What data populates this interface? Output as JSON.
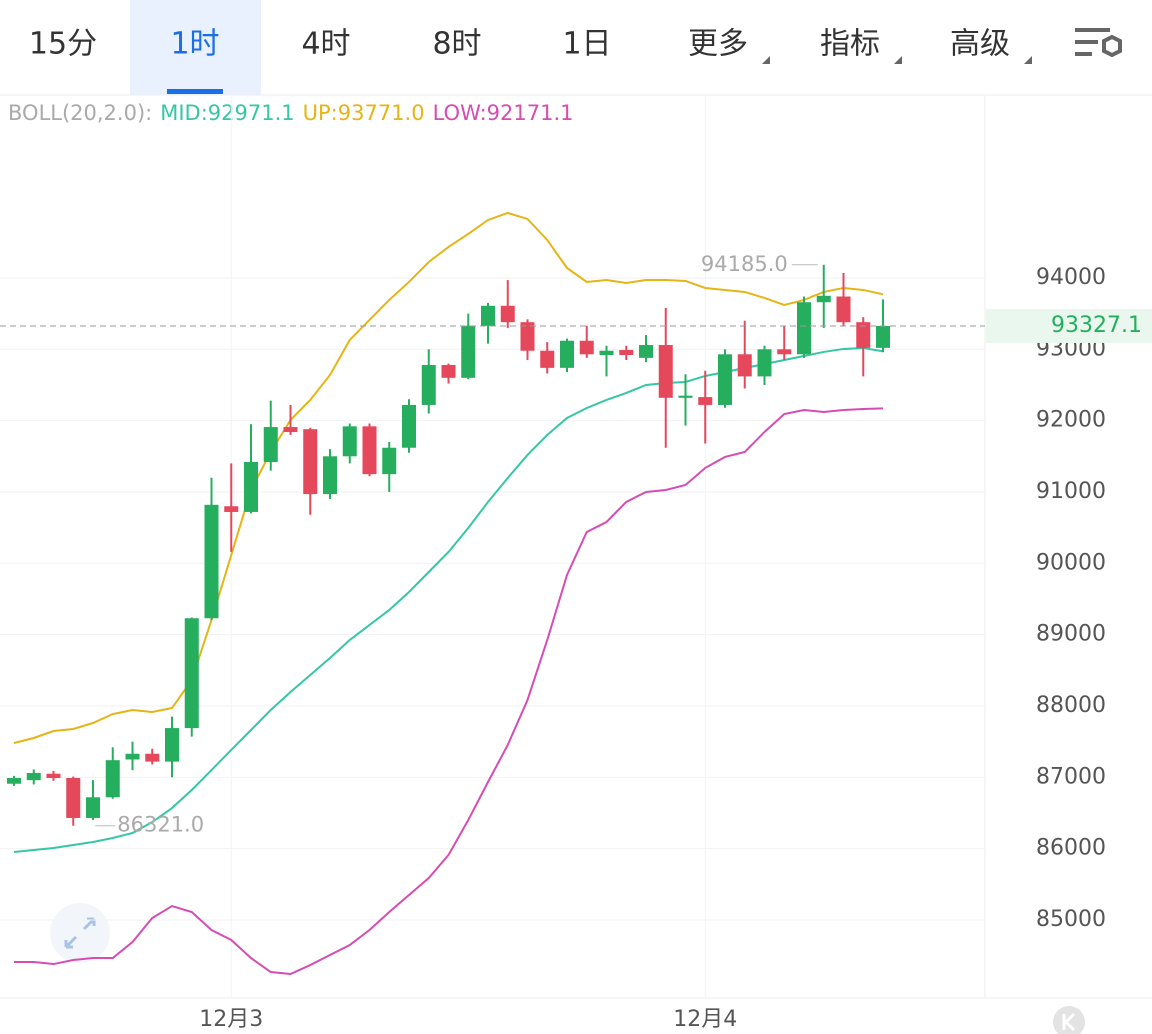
{
  "tabs": {
    "items": [
      "15分",
      "1时",
      "4时",
      "8时",
      "1日",
      "更多",
      "指标",
      "高级"
    ],
    "active": 1
  },
  "chart_data": {
    "type": "candlestick",
    "indicator_label": "BOLL(20,2.0):",
    "categories": [
      null,
      null,
      null,
      null,
      null,
      null,
      null,
      null,
      null,
      null,
      null,
      "12月3",
      null,
      null,
      null,
      null,
      null,
      null,
      null,
      null,
      null,
      null,
      null,
      null,
      null,
      null,
      null,
      null,
      null,
      null,
      null,
      null,
      null,
      null,
      null,
      "12月4",
      null,
      null,
      null,
      null,
      null,
      null,
      null,
      null,
      null
    ],
    "open": [
      86910,
      86960,
      87050,
      86990,
      86430,
      86720,
      87250,
      87330,
      87220,
      87690,
      89230,
      90800,
      90720,
      91420,
      91910,
      91880,
      90970,
      91500,
      91920,
      91250,
      91620,
      92220,
      92780,
      92600,
      93330,
      93610,
      93380,
      92980,
      92740,
      93120,
      92920,
      92990,
      92880,
      93060,
      92320,
      92330,
      92220,
      92930,
      92620,
      93000,
      92930,
      93660,
      93740,
      93380,
      93020
    ],
    "high": [
      87020,
      87110,
      87090,
      87010,
      86960,
      87420,
      87500,
      87400,
      87850,
      89240,
      91200,
      91400,
      91950,
      92280,
      92220,
      91900,
      91600,
      91960,
      91960,
      91700,
      92300,
      93000,
      92800,
      93500,
      93650,
      93970,
      93420,
      93100,
      93150,
      93330,
      93050,
      93050,
      93200,
      93580,
      92650,
      92700,
      93000,
      93400,
      93050,
      93320,
      93740,
      94185,
      94070,
      93450,
      93700
    ],
    "low": [
      86880,
      86900,
      86950,
      86321,
      86400,
      86700,
      87100,
      87180,
      87000,
      87570,
      89200,
      90160,
      90700,
      91300,
      91800,
      90680,
      90900,
      91400,
      91220,
      91000,
      91550,
      92100,
      92520,
      92580,
      93080,
      93300,
      92850,
      92660,
      92680,
      92880,
      92620,
      92850,
      92820,
      91620,
      91930,
      91680,
      92180,
      92450,
      92500,
      92850,
      92880,
      93300,
      93330,
      92620,
      92960
    ],
    "close": [
      86990,
      87060,
      86990,
      86430,
      86720,
      87240,
      87330,
      87220,
      87690,
      89230,
      90820,
      90720,
      91420,
      91910,
      91840,
      90970,
      91500,
      91920,
      91250,
      91620,
      92220,
      92780,
      92600,
      93330,
      93610,
      93380,
      92980,
      92740,
      93120,
      92930,
      92980,
      92920,
      93060,
      92320,
      92350,
      92220,
      92930,
      92620,
      93000,
      92930,
      93660,
      93750,
      93380,
      93020,
      93327.1
    ],
    "up_color": "#26ae5f",
    "down_color": "#e5475b",
    "series": [
      {
        "name": "MID:92971.1",
        "color": "#35c7a5",
        "values": [
          85953,
          85981,
          86009,
          86051,
          86093,
          86149,
          86219,
          86373,
          86569,
          86822,
          87102,
          87383,
          87663,
          87944,
          88196,
          88434,
          88673,
          88925,
          89136,
          89346,
          89598,
          89878,
          90159,
          90495,
          90860,
          91196,
          91519,
          91799,
          92037,
          92177,
          92290,
          92388,
          92500,
          92528,
          92542,
          92626,
          92682,
          92738,
          92794,
          92850,
          92906,
          92963,
          93005,
          93019,
          92971.1
        ]
      },
      {
        "name": "UP:93771.0",
        "color": "#e6b414",
        "values": [
          87481,
          87551,
          87649,
          87677,
          87761,
          87887,
          87943,
          87915,
          87971,
          88364,
          89205,
          90116,
          91028,
          91561,
          92009,
          92290,
          92640,
          93131,
          93411,
          93692,
          93944,
          94224,
          94435,
          94617,
          94813,
          94911,
          94827,
          94533,
          94140,
          93944,
          93972,
          93930,
          93972,
          93972,
          93958,
          93860,
          93832,
          93804,
          93720,
          93621,
          93692,
          93804,
          93860,
          93832,
          93771
        ]
      },
      {
        "name": "LOW:92171.1",
        "color": "#d64cb3",
        "values": [
          84410,
          84410,
          84382,
          84438,
          84466,
          84466,
          84691,
          85027,
          85195,
          85111,
          84859,
          84719,
          84466,
          84270,
          84242,
          84368,
          84509,
          84649,
          84859,
          85111,
          85350,
          85588,
          85911,
          86401,
          86934,
          87453,
          88084,
          88925,
          89836,
          90439,
          90579,
          90860,
          91000,
          91028,
          91098,
          91337,
          91491,
          91561,
          91841,
          92093,
          92149,
          92121,
          92149,
          92163,
          92171.1
        ]
      }
    ],
    "ylim": [
      83906,
      96565
    ],
    "yticks": [
      85000,
      86000,
      87000,
      88000,
      89000,
      90000,
      91000,
      92000,
      93000,
      94000
    ],
    "grid": true,
    "last_price": 93327.1,
    "annotations": [
      {
        "value": 94185,
        "label": "94185.0",
        "index": 41
      },
      {
        "value": 86321,
        "label": "86321.0",
        "index": 3
      }
    ]
  }
}
